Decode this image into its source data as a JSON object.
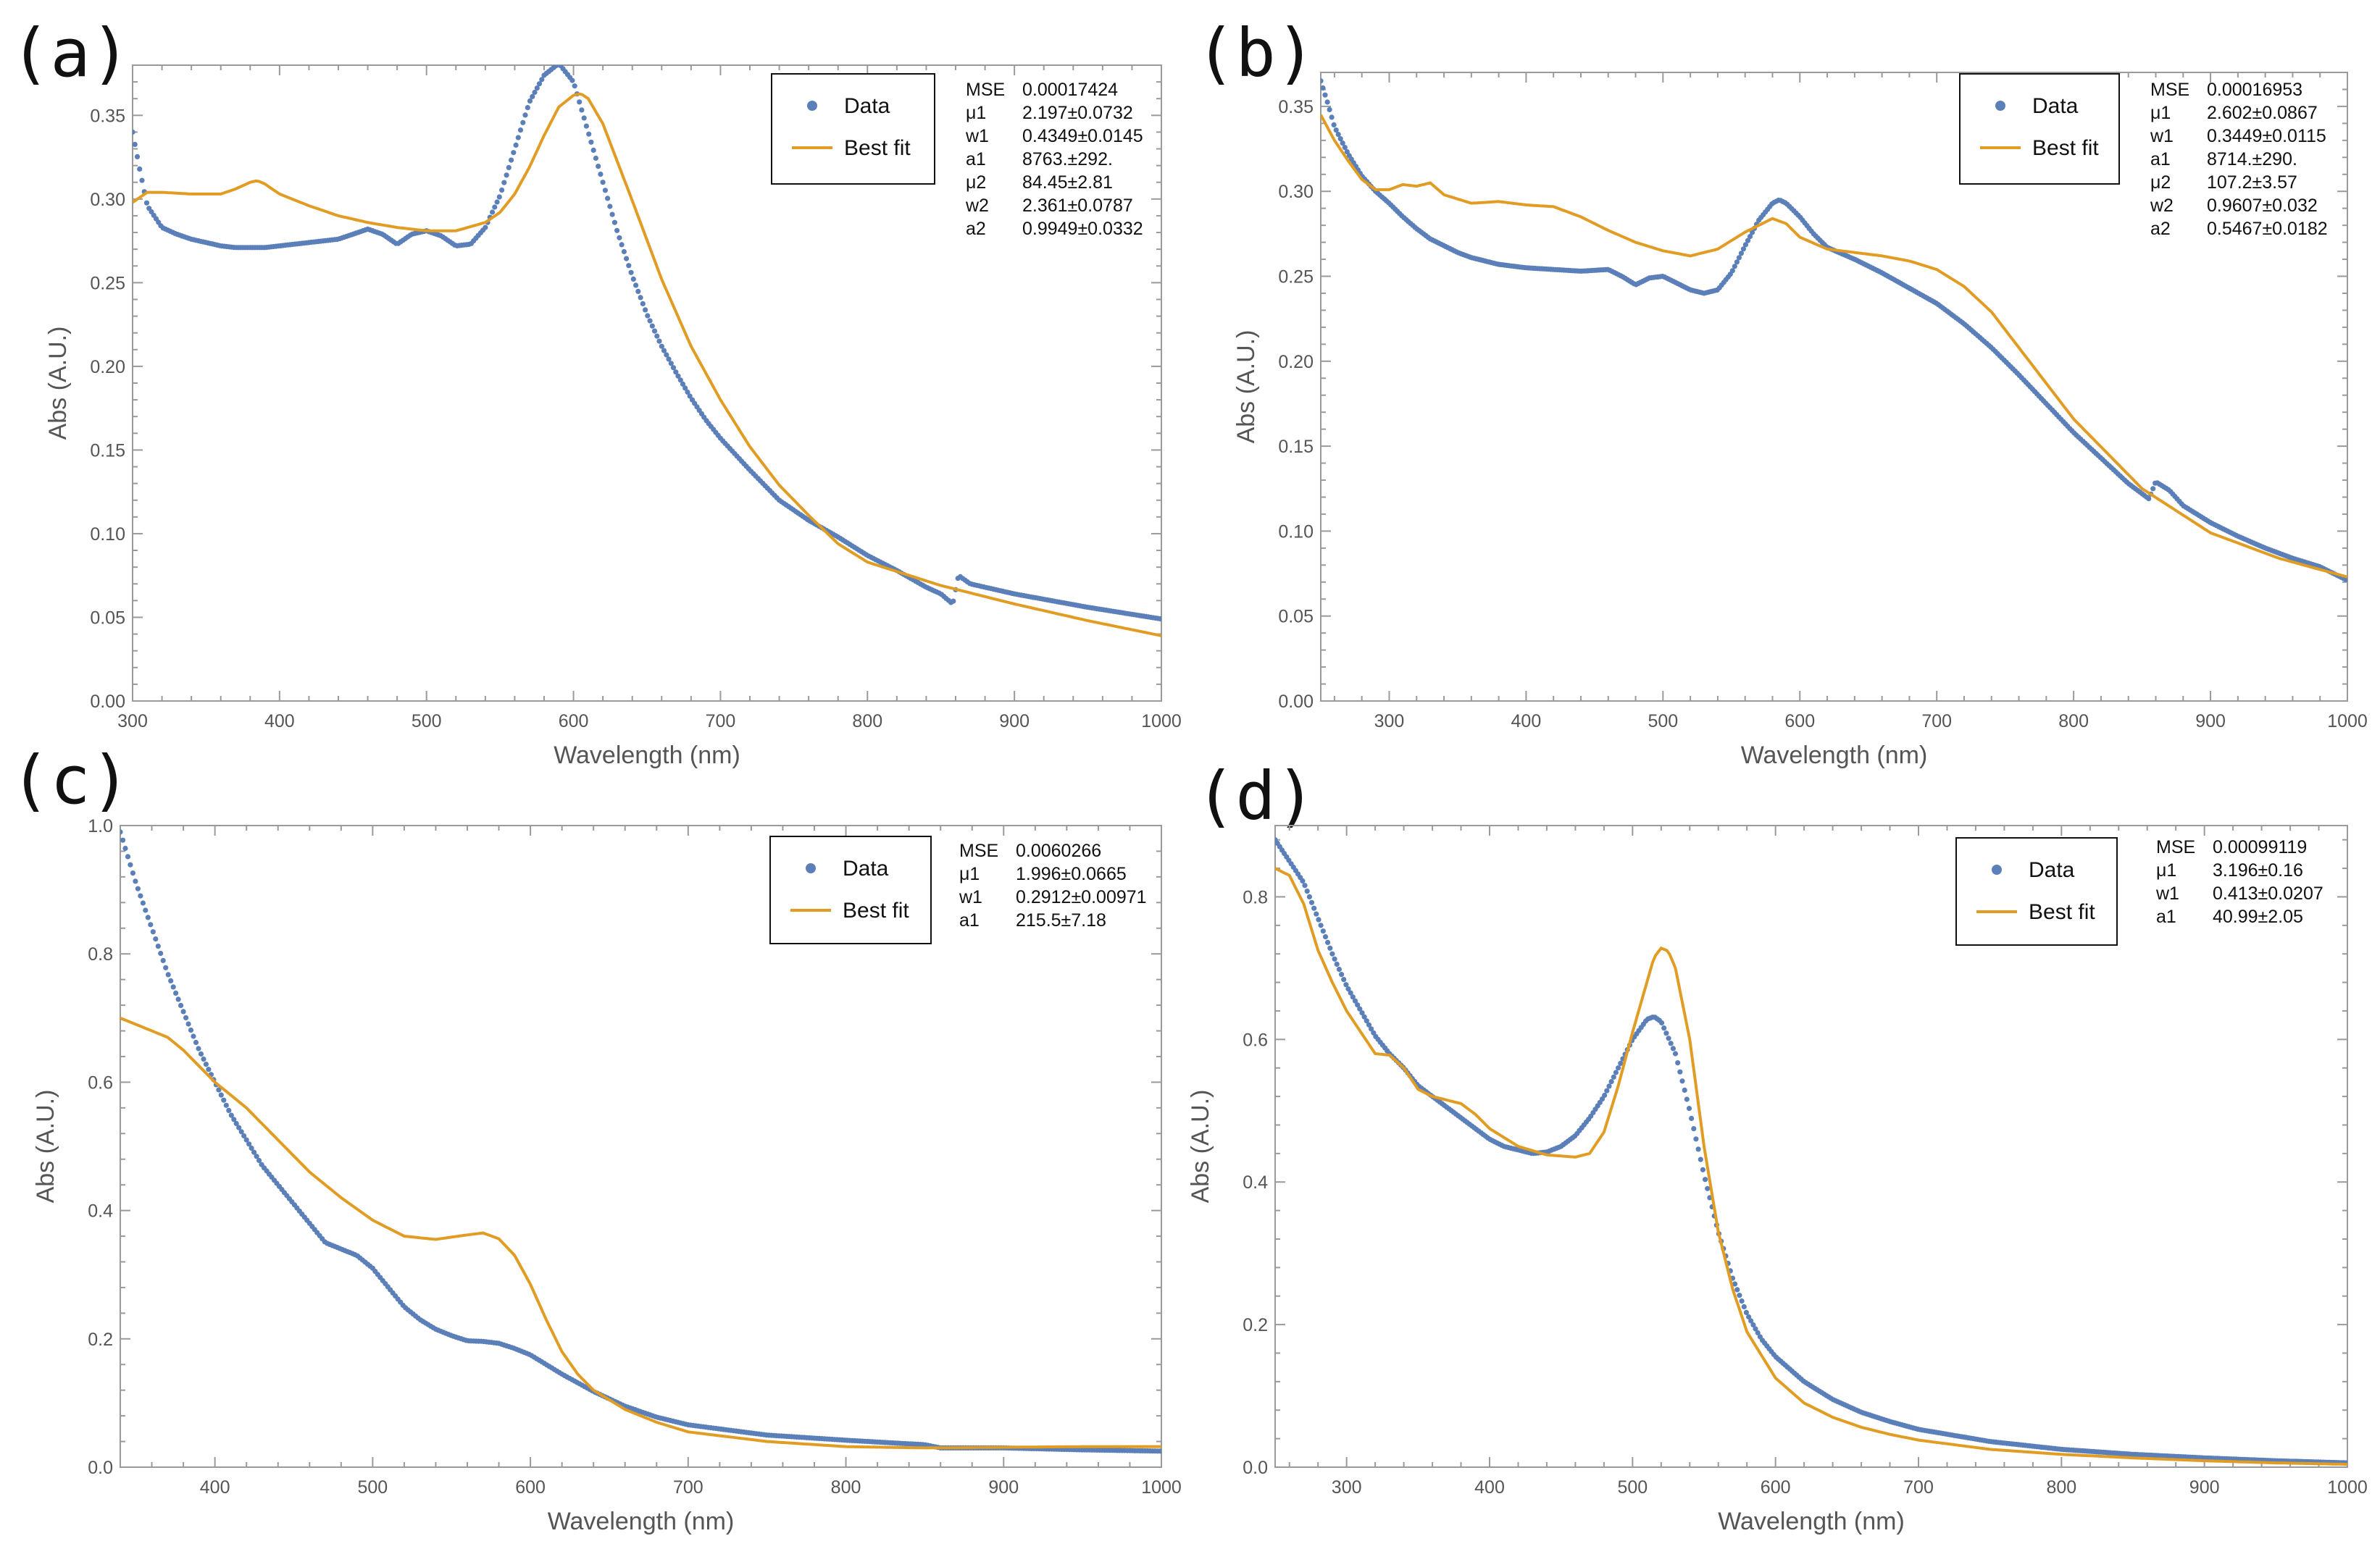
{
  "colors": {
    "data": "#5b7fb8",
    "fit": "#e19c24",
    "axis": "#9a9a9a",
    "text": "#555555"
  },
  "legend": {
    "data_label": "Data",
    "fit_label": "Best fit"
  },
  "chart_data": [
    {
      "panel": "(a)",
      "type": "scatter+line",
      "xlabel": "Wavelength (nm)",
      "ylabel": "Abs (A.U.)",
      "xlim": [
        300,
        1000
      ],
      "ylim": [
        0,
        0.38
      ],
      "xticks": [
        300,
        400,
        500,
        600,
        700,
        800,
        900,
        1000
      ],
      "yticks": [
        0.0,
        0.05,
        0.1,
        0.15,
        0.2,
        0.25,
        0.3,
        0.35
      ],
      "ytick_decimals": 2,
      "stats": [
        {
          "name": "MSE",
          "value": "0.00017424"
        },
        {
          "name": "μ1",
          "value": "2.197±0.0732"
        },
        {
          "name": "w1",
          "value": "0.4349±0.0145"
        },
        {
          "name": "a1",
          "value": "8763.±292."
        },
        {
          "name": "μ2",
          "value": "84.45±2.81"
        },
        {
          "name": "w2",
          "value": "2.361±0.0787"
        },
        {
          "name": "a2",
          "value": "0.9949±0.0332"
        }
      ],
      "data_x": [
        300,
        305,
        310,
        320,
        330,
        340,
        350,
        360,
        370,
        380,
        390,
        400,
        410,
        420,
        430,
        440,
        450,
        460,
        470,
        480,
        490,
        500,
        510,
        520,
        530,
        540,
        550,
        560,
        570,
        580,
        590,
        600,
        610,
        620,
        630,
        640,
        650,
        660,
        670,
        680,
        690,
        700,
        720,
        740,
        760,
        780,
        800,
        820,
        840,
        850,
        858,
        862,
        870,
        900,
        950,
        1000
      ],
      "data_y": [
        0.34,
        0.317,
        0.296,
        0.283,
        0.279,
        0.276,
        0.274,
        0.272,
        0.271,
        0.271,
        0.271,
        0.272,
        0.273,
        0.274,
        0.275,
        0.276,
        0.279,
        0.282,
        0.279,
        0.273,
        0.279,
        0.281,
        0.278,
        0.272,
        0.273,
        0.283,
        0.302,
        0.33,
        0.358,
        0.374,
        0.381,
        0.37,
        0.34,
        0.31,
        0.28,
        0.254,
        0.231,
        0.212,
        0.196,
        0.181,
        0.168,
        0.157,
        0.138,
        0.12,
        0.108,
        0.098,
        0.087,
        0.078,
        0.068,
        0.064,
        0.058,
        0.075,
        0.07,
        0.064,
        0.056,
        0.049
      ],
      "fit_x": [
        300,
        310,
        320,
        340,
        360,
        370,
        380,
        385,
        390,
        400,
        420,
        440,
        460,
        480,
        500,
        520,
        540,
        550,
        560,
        570,
        580,
        590,
        600,
        605,
        610,
        620,
        640,
        660,
        680,
        700,
        720,
        740,
        760,
        780,
        800,
        850,
        900,
        950,
        1000
      ],
      "fit_y": [
        0.298,
        0.304,
        0.304,
        0.303,
        0.303,
        0.306,
        0.31,
        0.311,
        0.309,
        0.303,
        0.296,
        0.29,
        0.286,
        0.283,
        0.281,
        0.281,
        0.286,
        0.292,
        0.303,
        0.319,
        0.338,
        0.355,
        0.362,
        0.363,
        0.36,
        0.345,
        0.299,
        0.252,
        0.212,
        0.18,
        0.152,
        0.129,
        0.111,
        0.094,
        0.083,
        0.069,
        0.058,
        0.048,
        0.039
      ]
    },
    {
      "panel": "(b)",
      "type": "scatter+line",
      "xlabel": "Wavelength (nm)",
      "ylabel": "Abs (A.U.)",
      "xlim": [
        250,
        1000
      ],
      "ylim": [
        0,
        0.37
      ],
      "xticks": [
        300,
        400,
        500,
        600,
        700,
        800,
        900,
        1000
      ],
      "yticks": [
        0.0,
        0.05,
        0.1,
        0.15,
        0.2,
        0.25,
        0.3,
        0.35
      ],
      "ytick_decimals": 2,
      "stats": [
        {
          "name": "MSE",
          "value": "0.00016953"
        },
        {
          "name": "μ1",
          "value": "2.602±0.0867"
        },
        {
          "name": "w1",
          "value": "0.3449±0.0115"
        },
        {
          "name": "a1",
          "value": "8714.±290."
        },
        {
          "name": "μ2",
          "value": "107.2±3.57"
        },
        {
          "name": "w2",
          "value": "0.9607±0.032"
        },
        {
          "name": "a2",
          "value": "0.5467±0.0182"
        }
      ],
      "data_x": [
        250,
        255,
        260,
        270,
        280,
        290,
        300,
        310,
        320,
        330,
        340,
        350,
        360,
        380,
        400,
        420,
        440,
        460,
        470,
        480,
        490,
        500,
        510,
        520,
        530,
        540,
        550,
        560,
        570,
        580,
        585,
        590,
        600,
        610,
        620,
        640,
        660,
        680,
        700,
        720,
        740,
        760,
        780,
        800,
        820,
        840,
        855,
        860,
        870,
        880,
        900,
        920,
        940,
        960,
        980,
        1000
      ],
      "data_y": [
        0.365,
        0.352,
        0.338,
        0.322,
        0.309,
        0.3,
        0.293,
        0.285,
        0.278,
        0.272,
        0.268,
        0.264,
        0.261,
        0.257,
        0.255,
        0.254,
        0.253,
        0.254,
        0.25,
        0.245,
        0.249,
        0.25,
        0.246,
        0.242,
        0.24,
        0.242,
        0.252,
        0.268,
        0.283,
        0.293,
        0.295,
        0.293,
        0.285,
        0.275,
        0.267,
        0.26,
        0.252,
        0.243,
        0.234,
        0.222,
        0.208,
        0.192,
        0.175,
        0.158,
        0.143,
        0.128,
        0.119,
        0.129,
        0.124,
        0.115,
        0.105,
        0.097,
        0.09,
        0.084,
        0.079,
        0.071
      ],
      "fit_x": [
        250,
        260,
        270,
        280,
        290,
        300,
        310,
        320,
        330,
        340,
        360,
        380,
        400,
        420,
        440,
        460,
        480,
        500,
        520,
        540,
        560,
        580,
        590,
        600,
        620,
        640,
        660,
        680,
        700,
        720,
        740,
        760,
        780,
        800,
        850,
        900,
        950,
        1000
      ],
      "fit_y": [
        0.345,
        0.33,
        0.318,
        0.307,
        0.301,
        0.301,
        0.304,
        0.303,
        0.305,
        0.298,
        0.293,
        0.294,
        0.292,
        0.291,
        0.285,
        0.277,
        0.27,
        0.265,
        0.262,
        0.266,
        0.276,
        0.284,
        0.281,
        0.273,
        0.266,
        0.264,
        0.262,
        0.259,
        0.254,
        0.244,
        0.229,
        0.208,
        0.187,
        0.166,
        0.125,
        0.099,
        0.084,
        0.073
      ]
    },
    {
      "panel": "(c)",
      "type": "scatter+line",
      "xlabel": "Wavelength (nm)",
      "ylabel": "Abs (A.U.)",
      "xlim": [
        340,
        1000
      ],
      "ylim": [
        0,
        1.0
      ],
      "xticks": [
        400,
        500,
        600,
        700,
        800,
        900,
        1000
      ],
      "yticks": [
        0.0,
        0.2,
        0.4,
        0.6,
        0.8,
        1.0
      ],
      "ytick_decimals": 1,
      "stats": [
        {
          "name": "MSE",
          "value": "0.0060266"
        },
        {
          "name": "μ1",
          "value": "1.996±0.0665"
        },
        {
          "name": "w1",
          "value": "0.2912±0.00971"
        },
        {
          "name": "a1",
          "value": "215.5±7.18"
        }
      ],
      "data_x": [
        340,
        350,
        360,
        370,
        380,
        390,
        400,
        410,
        420,
        430,
        440,
        450,
        460,
        470,
        480,
        490,
        500,
        510,
        520,
        530,
        540,
        550,
        560,
        570,
        580,
        590,
        600,
        610,
        620,
        640,
        660,
        680,
        700,
        750,
        800,
        850,
        860,
        900,
        950,
        1000
      ],
      "data_y": [
        0.99,
        0.91,
        0.84,
        0.77,
        0.71,
        0.65,
        0.6,
        0.55,
        0.51,
        0.47,
        0.44,
        0.41,
        0.38,
        0.35,
        0.34,
        0.33,
        0.31,
        0.28,
        0.25,
        0.23,
        0.215,
        0.205,
        0.197,
        0.196,
        0.193,
        0.185,
        0.175,
        0.16,
        0.145,
        0.118,
        0.095,
        0.078,
        0.066,
        0.05,
        0.042,
        0.035,
        0.03,
        0.03,
        0.027,
        0.025
      ],
      "fit_x": [
        340,
        350,
        360,
        370,
        380,
        390,
        400,
        410,
        420,
        430,
        440,
        450,
        460,
        480,
        500,
        520,
        540,
        560,
        570,
        580,
        590,
        600,
        610,
        620,
        630,
        640,
        660,
        680,
        700,
        750,
        800,
        850,
        900,
        950,
        1000
      ],
      "fit_y": [
        0.7,
        0.69,
        0.68,
        0.67,
        0.65,
        0.625,
        0.6,
        0.58,
        0.56,
        0.535,
        0.51,
        0.485,
        0.46,
        0.42,
        0.385,
        0.36,
        0.355,
        0.362,
        0.365,
        0.356,
        0.33,
        0.285,
        0.23,
        0.18,
        0.145,
        0.12,
        0.09,
        0.07,
        0.055,
        0.04,
        0.032,
        0.03,
        0.031,
        0.032,
        0.032
      ]
    },
    {
      "panel": "(d)",
      "type": "scatter+line",
      "xlabel": "Wavelength (nm)",
      "ylabel": "Abs (A.U.)",
      "xlim": [
        250,
        1000
      ],
      "ylim": [
        0,
        0.9
      ],
      "xticks": [
        300,
        400,
        500,
        600,
        700,
        800,
        900,
        1000
      ],
      "yticks": [
        0.0,
        0.2,
        0.4,
        0.6,
        0.8
      ],
      "ytick_decimals": 1,
      "stats": [
        {
          "name": "MSE",
          "value": "0.00099119"
        },
        {
          "name": "μ1",
          "value": "3.196±0.16"
        },
        {
          "name": "w1",
          "value": "0.413±0.0207"
        },
        {
          "name": "a1",
          "value": "40.99±2.05"
        }
      ],
      "data_x": [
        250,
        260,
        270,
        280,
        290,
        300,
        310,
        320,
        330,
        340,
        350,
        360,
        370,
        380,
        390,
        400,
        410,
        420,
        430,
        440,
        450,
        460,
        470,
        480,
        490,
        500,
        510,
        515,
        520,
        530,
        540,
        550,
        560,
        570,
        580,
        590,
        600,
        620,
        640,
        660,
        680,
        700,
        750,
        800,
        850,
        900,
        950,
        1000
      ],
      "data_y": [
        0.88,
        0.85,
        0.82,
        0.77,
        0.72,
        0.675,
        0.64,
        0.605,
        0.58,
        0.56,
        0.535,
        0.52,
        0.505,
        0.49,
        0.475,
        0.46,
        0.45,
        0.445,
        0.44,
        0.442,
        0.45,
        0.465,
        0.49,
        0.52,
        0.56,
        0.6,
        0.628,
        0.632,
        0.625,
        0.58,
        0.5,
        0.41,
        0.33,
        0.265,
        0.215,
        0.18,
        0.155,
        0.12,
        0.095,
        0.077,
        0.064,
        0.053,
        0.036,
        0.025,
        0.018,
        0.013,
        0.009,
        0.006
      ],
      "fit_x": [
        250,
        260,
        270,
        280,
        290,
        300,
        310,
        320,
        330,
        340,
        350,
        360,
        370,
        380,
        390,
        400,
        420,
        440,
        460,
        470,
        480,
        490,
        500,
        510,
        515,
        520,
        525,
        530,
        540,
        550,
        560,
        570,
        580,
        600,
        620,
        640,
        660,
        680,
        700,
        750,
        800,
        850,
        900,
        950,
        1000
      ],
      "fit_y": [
        0.84,
        0.83,
        0.79,
        0.725,
        0.68,
        0.64,
        0.61,
        0.58,
        0.578,
        0.56,
        0.53,
        0.52,
        0.515,
        0.51,
        0.495,
        0.475,
        0.45,
        0.438,
        0.435,
        0.44,
        0.47,
        0.535,
        0.61,
        0.68,
        0.715,
        0.728,
        0.724,
        0.7,
        0.6,
        0.45,
        0.33,
        0.25,
        0.19,
        0.125,
        0.09,
        0.07,
        0.056,
        0.046,
        0.038,
        0.025,
        0.018,
        0.013,
        0.009,
        0.006,
        0.004
      ]
    }
  ]
}
